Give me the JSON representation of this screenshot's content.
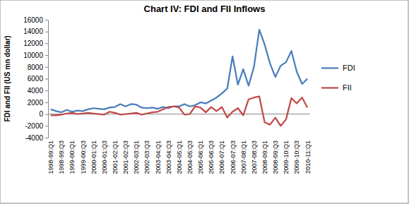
{
  "chart_data": {
    "type": "line",
    "title": "Chart IV: FDI and FII Inflows",
    "y_label": "FDI and FII (US mn dollar)",
    "categories": [
      "1998-99:Q1",
      null,
      "1998-99:Q3",
      null,
      "1999-00:Q1",
      null,
      "1999-00:Q3",
      null,
      "2000-01:Q1",
      null,
      "2000-01:Q3",
      null,
      "2001-02:Q1",
      null,
      "2001-02:Q3",
      null,
      "2002-03:Q1",
      null,
      "2002-03:Q3",
      null,
      "2003-04:Q1",
      null,
      "2003-04:Q3",
      null,
      "2004-05:Q1",
      null,
      "2004-05:Q3",
      null,
      "2005-06:Q1",
      null,
      "2005-06:Q3",
      null,
      "2006-07:Q1",
      null,
      "2006-07:Q3",
      null,
      "2007-08:Q1",
      null,
      "2007-08:Q3",
      null,
      "2008-09:Q1",
      null,
      "2008-09:Q3",
      null,
      "2009-10:Q1",
      null,
      "2009-10:Q3",
      null,
      "2010-11:Q1"
    ],
    "series": [
      {
        "name": "FDI",
        "color": "#4a7ebb",
        "values": [
          800,
          500,
          300,
          700,
          400,
          600,
          500,
          800,
          1000,
          900,
          800,
          1100,
          1200,
          1700,
          1300,
          1700,
          1600,
          1100,
          1000,
          1100,
          900,
          1200,
          1000,
          1300,
          1300,
          1700,
          1300,
          1500,
          2000,
          1800,
          2300,
          2800,
          3500,
          4300,
          9800,
          5000,
          7600,
          4800,
          8000,
          14300,
          11800,
          8600,
          6300,
          8200,
          8800,
          10700,
          7200,
          5100,
          6000
        ]
      },
      {
        "name": "FII",
        "color": "#be4b48",
        "values": [
          -200,
          -200,
          -100,
          100,
          200,
          0,
          100,
          200,
          100,
          0,
          -100,
          400,
          200,
          -100,
          0,
          100,
          200,
          -100,
          100,
          300,
          400,
          800,
          1200,
          1300,
          1100,
          -100,
          0,
          1300,
          1100,
          300,
          1200,
          500,
          1200,
          -600,
          400,
          1000,
          -200,
          2500,
          2800,
          3000,
          -1400,
          -1800,
          -600,
          -2000,
          -900,
          2700,
          1800,
          2800,
          1100
        ]
      }
    ],
    "ylim": [
      -4000,
      16000
    ],
    "yticks": [
      -4000,
      -2000,
      0,
      2000,
      4000,
      6000,
      8000,
      10000,
      12000,
      14000,
      16000
    ],
    "grid": false,
    "legend": "right"
  }
}
